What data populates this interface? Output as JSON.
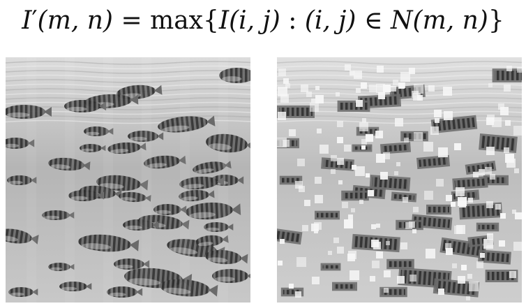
{
  "formula": {
    "lhs_symbol": "I",
    "lhs_prime": "′",
    "lhs_args": "(m, n)",
    "equals": "=",
    "operator": "max",
    "set_open": "{",
    "inner_symbol": "I",
    "inner_args": "(i, j)",
    "colon": ":",
    "index": "(i, j)",
    "member": "∈",
    "neighborhood": "N",
    "neighborhood_args": "(m, n)",
    "set_close": "}"
  },
  "panels": [
    {
      "id": "original",
      "description_icon": "underwater-fish-school-grayscale"
    },
    {
      "id": "max-filtered",
      "description_icon": "underwater-fish-school-dilated-blocky"
    }
  ],
  "colors": {
    "water_light": "#dcdcdc",
    "water_mid": "#b5b5b5",
    "water_dark": "#8a8a8a",
    "fish_dark": "#2e2e2e",
    "fish_mid": "#6a6a6a",
    "highlight": "#f7f7f7"
  }
}
